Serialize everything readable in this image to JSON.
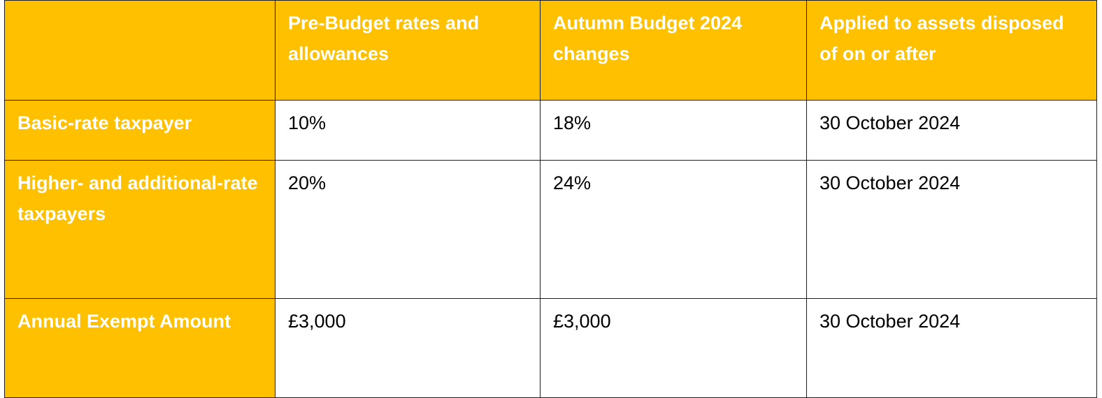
{
  "table": {
    "columns": [
      "",
      "Pre-Budget rates and allowances",
      "Autumn Budget 2024 changes",
      "Applied to assets disposed of on or after"
    ],
    "rows": [
      {
        "label": "Basic-rate taxpayer",
        "pre_budget": "10%",
        "autumn_budget": "18%",
        "applied_from": "30 October 2024"
      },
      {
        "label": "Higher- and additional-rate taxpayers",
        "pre_budget": "20%",
        "autumn_budget": "24%",
        "applied_from": "30 October 2024"
      },
      {
        "label": "Annual Exempt Amount",
        "pre_budget": "£3,000",
        "autumn_budget": "£3,000",
        "applied_from": "30 October 2024"
      }
    ]
  },
  "colors": {
    "header_fill": "#ffc000",
    "header_text": "#ffffff",
    "border": "#1f1f1f"
  }
}
